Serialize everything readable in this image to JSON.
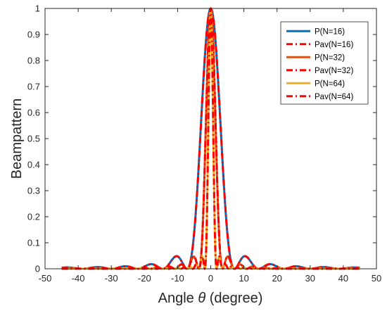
{
  "chart_data": {
    "type": "line",
    "title": "",
    "xlabel_prefix": "Angle ",
    "xlabel_symbol": "θ",
    "xlabel_suffix": " (degree)",
    "ylabel": "Beampattern",
    "xlim": [
      -50,
      50
    ],
    "ylim": [
      0,
      1
    ],
    "xticks": [
      -50,
      -40,
      -30,
      -20,
      -10,
      0,
      10,
      20,
      30,
      40,
      50
    ],
    "yticks": [
      0,
      0.1,
      0.2,
      0.3,
      0.4,
      0.5,
      0.6,
      0.7,
      0.8,
      0.9,
      1
    ],
    "grid": false,
    "legend_position": "top-right",
    "x_range_plotted": [
      -45,
      45
    ],
    "series": [
      {
        "name": "P(N=16)",
        "N": 16,
        "color": "#0072BD",
        "style": "solid",
        "width": 3.0
      },
      {
        "name": "Pav(N=16)",
        "N": 16,
        "color": "#FF0000",
        "style": "dashdot",
        "width": 3.0
      },
      {
        "name": "P(N=32)",
        "N": 32,
        "color": "#D95319",
        "style": "solid",
        "width": 3.0
      },
      {
        "name": "Pav(N=32)",
        "N": 32,
        "color": "#FF0000",
        "style": "dashdot",
        "width": 3.0
      },
      {
        "name": "P(N=64)",
        "N": 64,
        "color": "#EDB120",
        "style": "solid",
        "width": 3.0
      },
      {
        "name": "Pav(N=64)",
        "N": 64,
        "color": "#FF0000",
        "style": "dashdot",
        "width": 3.0
      }
    ]
  }
}
